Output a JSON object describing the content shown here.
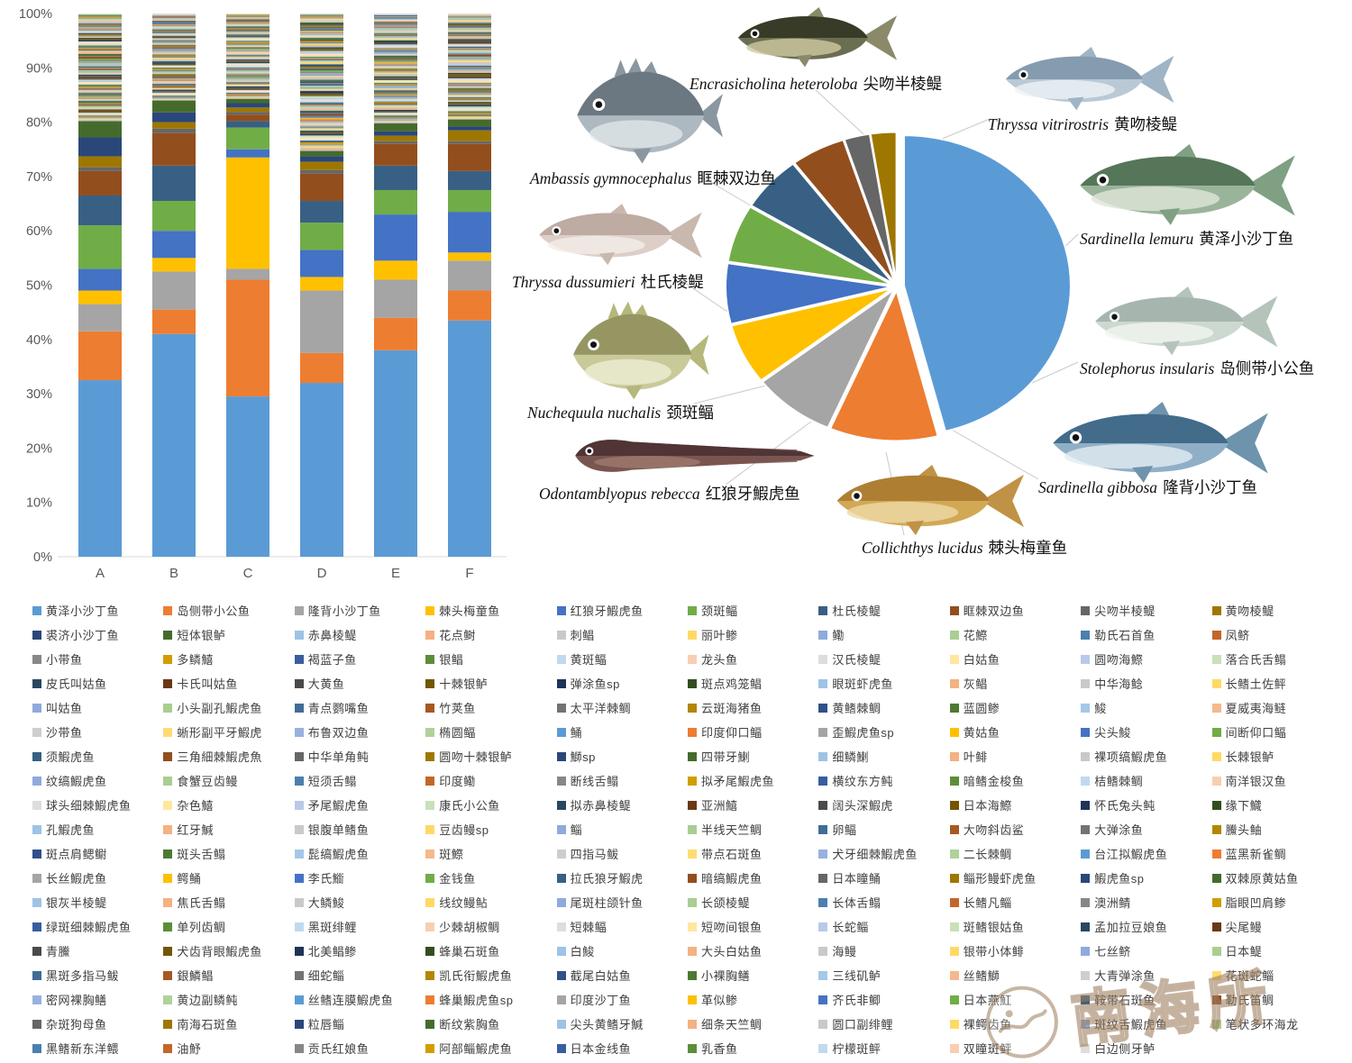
{
  "chart_data": [
    {
      "type": "bar",
      "stacked": true,
      "title": "",
      "xlabel": "",
      "ylabel": "",
      "unit": "percent",
      "ylim": [
        0,
        100
      ],
      "grid": false,
      "y_ticks": [
        "0%",
        "10%",
        "20%",
        "30%",
        "40%",
        "50%",
        "60%",
        "70%",
        "80%",
        "90%",
        "100%"
      ],
      "categories": [
        "A",
        "B",
        "C",
        "D",
        "E",
        "F"
      ],
      "major_series": [
        "黄泽小沙丁鱼",
        "岛侧带小公鱼",
        "隆背小沙丁鱼",
        "棘头梅童鱼",
        "红狼牙鰕虎鱼",
        "颈斑鲾",
        "杜氏棱鳀",
        "眶棘双边鱼",
        "尖吻半棱鳀",
        "黄吻棱鳀",
        "裘济小沙丁鱼",
        "短体银鲈"
      ],
      "bars": [
        {
          "category": "A",
          "major_values": [
            32.5,
            9,
            5,
            2.5,
            4,
            8,
            5.5,
            4.5,
            0.7,
            2,
            3.5,
            3
          ],
          "others_total": 19.8
        },
        {
          "category": "B",
          "major_values": [
            41,
            4.5,
            7,
            2.5,
            5,
            5.5,
            6.5,
            6,
            0.8,
            1.2,
            1.8,
            2.2
          ],
          "others_total": 16
        },
        {
          "category": "C",
          "major_values": [
            29.5,
            21.5,
            2,
            20.5,
            1.5,
            4,
            1.2,
            1.2,
            0.5,
            0.8,
            0.8,
            0.8
          ],
          "others_total": 15.7
        },
        {
          "category": "D",
          "major_values": [
            32,
            5.5,
            11.5,
            2.5,
            5,
            5,
            4,
            5,
            0.7,
            1.5,
            1,
            1
          ],
          "others_total": 25.3
        },
        {
          "category": "E",
          "major_values": [
            38,
            6,
            7,
            3.5,
            8.5,
            4.5,
            4.5,
            4,
            0.5,
            1,
            0.8,
            1.5
          ],
          "others_total": 20.2
        },
        {
          "category": "F",
          "major_values": [
            43.5,
            5.5,
            5.5,
            1.5,
            7.5,
            4,
            3.5,
            5,
            0.5,
            2,
            0.7,
            1.3
          ],
          "others_total": 19.5
        }
      ],
      "others_species_count": 177
    },
    {
      "type": "pie",
      "title": "",
      "legend_position": "callouts",
      "slices": [
        {
          "latin": "Sardinella lemuru",
          "cn": "黄泽小沙丁鱼",
          "value": 46
        },
        {
          "latin": "Stolephorus insularis",
          "cn": "岛侧带小公鱼",
          "value": 10.5
        },
        {
          "latin": "Sardinella gibbosa",
          "cn": "隆背小沙丁鱼",
          "value": 8
        },
        {
          "latin": "Collichthys lucidus",
          "cn": "棘头梅童鱼",
          "value": 6.5
        },
        {
          "latin": "Odontamblyopus rebecca",
          "cn": "红狼牙鰕虎鱼",
          "value": 6.5
        },
        {
          "latin": "Nuchequula nuchalis",
          "cn": "颈斑鲾",
          "value": 6.2
        },
        {
          "latin": "Thryssa dussumieri",
          "cn": "杜氏棱鳀",
          "value": 6
        },
        {
          "latin": "Ambassis gymnocephalus",
          "cn": "眶棘双边鱼",
          "value": 5.3
        },
        {
          "latin": "Encrasicholina heteroloba",
          "cn": "尖吻半棱鳀",
          "value": 2.5
        },
        {
          "latin": "Thryssa vitrirostris",
          "cn": "黄吻棱鳀",
          "value": 2.5
        }
      ]
    }
  ],
  "palette": {
    "base": [
      "#5B9BD5",
      "#ED7D31",
      "#A5A5A5",
      "#FFC000",
      "#4472C4",
      "#70AD47"
    ],
    "shade_cycle_pct": [
      0,
      -38,
      40,
      -18,
      62,
      -55,
      40,
      -30,
      45
    ]
  },
  "callouts": [
    {
      "slice": 8,
      "kind": "slim",
      "fish": {
        "back": "#2f3220",
        "body": "#6b6f52",
        "belly": "#cfc9a0",
        "fin": "#8a8a6a"
      }
    },
    {
      "slice": 9,
      "kind": "slim",
      "fish": {
        "back": "#7b93a8",
        "body": "#b9c9d6",
        "belly": "#eef3f6",
        "fin": "#9fb4c4"
      }
    },
    {
      "slice": 0,
      "kind": "slim",
      "fish": {
        "back": "#4a6b4e",
        "body": "#9ab49b",
        "belly": "#dfe6d8",
        "fin": "#7fa083"
      }
    },
    {
      "slice": 1,
      "kind": "slim",
      "fish": {
        "back": "#9fb0a8",
        "body": "#cdd8d0",
        "belly": "#f2f5f0",
        "fin": "#b5c4bb"
      }
    },
    {
      "slice": 2,
      "kind": "slim",
      "fish": {
        "back": "#35607f",
        "body": "#8fafc7",
        "belly": "#e2ecf3",
        "fin": "#6e93ad"
      }
    },
    {
      "slice": 3,
      "kind": "slim",
      "fish": {
        "back": "#a8782e",
        "body": "#d2a855",
        "belly": "#edd9a8",
        "fin": "#c09245"
      }
    },
    {
      "slice": 4,
      "kind": "eel",
      "fish": {
        "back": "#4a2f30",
        "body": "#7a5550",
        "belly": "#a88578",
        "fin": "#5f413f"
      }
    },
    {
      "slice": 5,
      "kind": "deep",
      "fish": {
        "back": "#8a8a55",
        "body": "#c9c99a",
        "belly": "#efefd8",
        "fin": "#b5b87a"
      }
    },
    {
      "slice": 6,
      "kind": "slim",
      "fish": {
        "back": "#b9a49a",
        "body": "#ddcfc8",
        "belly": "#f4ede8",
        "fin": "#c9b8ae"
      }
    },
    {
      "slice": 7,
      "kind": "deep",
      "fish": {
        "back": "#5a6670",
        "body": "#adb8c0",
        "belly": "#e4e9ec",
        "fin": "#8a97a0"
      }
    }
  ],
  "legend": {
    "species": [
      "黄泽小沙丁鱼",
      "岛侧带小公鱼",
      "隆背小沙丁鱼",
      "棘头梅童鱼",
      "红狼牙鰕虎鱼",
      "颈斑鲾",
      "杜氏棱鳀",
      "眶棘双边鱼",
      "尖吻半棱鳀",
      "黄吻棱鳀",
      "裘济小沙丁鱼",
      "短体银鲈",
      "赤鼻棱鳀",
      "花点鲥",
      "刺鲳",
      "丽叶鲹",
      "鳓",
      "花鰶",
      "勒氏石首鱼",
      "凤鲚",
      "小带鱼",
      "多鳞鱚",
      "褐蓝子鱼",
      "银鲳",
      "黄斑鲾",
      "龙头鱼",
      "汉氏棱鳀",
      "白姑鱼",
      "圆吻海鰶",
      "落合氏舌鳎",
      "皮氏叫姑鱼",
      "卡氏叫姑鱼",
      "大黄鱼",
      "十棘银鲈",
      "弹涂鱼sp",
      "斑点鸡笼鲳",
      "眼斑虾虎鱼",
      "灰鲳",
      "中华海鲶",
      "长鳍土佐鲆",
      "叫姑鱼",
      "小头副孔鰕虎鱼",
      "青点鹦嘴鱼",
      "竹荚鱼",
      "太平洋棘鲷",
      "云斑海猪鱼",
      "黄鳍棘鲷",
      "蓝圆鲹",
      "鮻",
      "夏威夷海鲢",
      "沙带鱼",
      "蜥形副平牙鰕虎",
      "布鲁双边鱼",
      "椭圆鲾",
      "鲬",
      "印度仰口鲾",
      "歪鰕虎鱼sp",
      "黄姑鱼",
      "尖头鮻",
      "间断仰口鲾",
      "须鰕虎鱼",
      "三角細棘鰕虎魚",
      "中华单角鲀",
      "圆吻十棘银鲈",
      "鰤sp",
      "四带牙鯻",
      "细鳞鯻",
      "叶鲱",
      "裸项缟鰕虎鱼",
      "长棘银鲈",
      "纹缟鰕虎鱼",
      "食蟹豆齿鳗",
      "短须舌鳎",
      "印度鳓",
      "断线舌鳎",
      "拟矛尾鰕虎鱼",
      "横纹东方鲀",
      "暗鳍金梭鱼",
      "桔鳍棘鲷",
      "南洋银汉鱼",
      "球头细棘鰕虎鱼",
      "杂色鱚",
      "矛尾鰕虎鱼",
      "康氏小公鱼",
      "拟赤鼻棱鳀",
      "亚洲鱚",
      "阔头深鰕虎",
      "日本海鰶",
      "怀氏兔头鲀",
      "缘下鱵",
      "孔鰕虎鱼",
      "红牙鰔",
      "银腹单鳍鱼",
      "豆齿鳗sp",
      "鲻",
      "半线天竺鲷",
      "卵鲾",
      "大吻斜齿鲨",
      "大弹涂鱼",
      "鰧头鲉",
      "斑点肩鳃鳚",
      "斑头舌鳎",
      "髭缟鰕虎鱼",
      "斑鰶",
      "四指马鲅",
      "带点石斑鱼",
      "犬牙细棘鰕虎鱼",
      "二长棘鲷",
      "台江拟鰕虎鱼",
      "蓝黑新雀鲷",
      "长丝鰕虎鱼",
      "鳄鲬",
      "李氏䲗",
      "金钱鱼",
      "拉氏狼牙鰕虎",
      "暗缟鰕虎鱼",
      "日本瞳鲬",
      "鲻形鳗虾虎鱼",
      "鰕虎鱼sp",
      "双棘原黄姑鱼",
      "银灰半棱鳀",
      "焦氏舌鳎",
      "大鳞鮻",
      "线纹鳗鲇",
      "尾斑柱颌针鱼",
      "长颌棱鳀",
      "长体舌鳎",
      "长鳍凡鲻",
      "澳洲鲭",
      "脂眼凹肩鲹",
      "绿斑细棘鰕虎鱼",
      "单列齿鲷",
      "黑斑绯鲤",
      "少棘胡椒鲷",
      "短棘鲾",
      "短吻间银鱼",
      "长蛇鲻",
      "斑鳍银姑鱼",
      "孟加拉豆娘鱼",
      "尖尾鳗",
      "青鰧",
      "犬齿背眼鰕虎鱼",
      "北美鲳鲹",
      "蜂巢石斑鱼",
      "白鮻",
      "大头白姑鱼",
      "海鳗",
      "银带小体鲱",
      "七丝鲚",
      "日本鳀",
      "黑斑多指马鲅",
      "銀鱗鲳",
      "细蛇鲻",
      "凯氏衔鰕虎鱼",
      "截尾白姑鱼",
      "小裸胸鳝",
      "三线矶鲈",
      "丝鳍鰤",
      "大青弹涂鱼",
      "花斑蛇鲻",
      "密网裸胸鳝",
      "黄边副鳞鲀",
      "丝鳍连膜鰕虎鱼",
      "蜂巢鰕虎鱼sp",
      "印度沙丁鱼",
      "革似鲹",
      "齐氏非鲫",
      "日本燕魟",
      "鞍带石斑鱼",
      "勒氏笛鲷",
      "杂斑狗母鱼",
      "南海石斑鱼",
      "粒唇鲻",
      "断纹紫胸鱼",
      "尖头黄鳍牙鰔",
      "细条天竺鲷",
      "圆口副绯鲤",
      "裸鳄齿鱼",
      "斑纹舌鰕虎鱼",
      "笔状多环海龙",
      "黑鳍新东洋鳂",
      "油魣",
      "贡氏红娘鱼",
      "阿部鲻鰕虎鱼",
      "日本金线鱼",
      "乳香鱼",
      "柠檬斑鲆",
      "双瞳斑鲆",
      "白边侧牙鲈"
    ]
  },
  "watermark": {
    "text": "南海所"
  }
}
